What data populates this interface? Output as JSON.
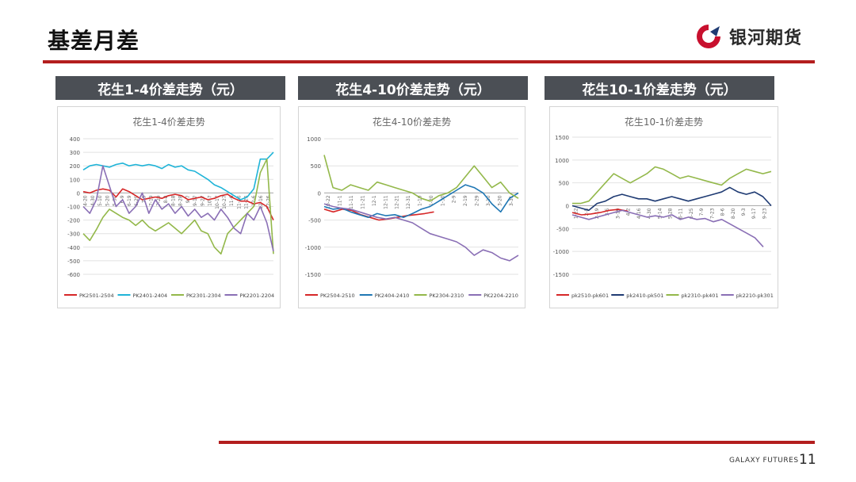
{
  "page": {
    "title": "基差月差",
    "number": "11"
  },
  "brand": {
    "name": "银河期货",
    "footer": "GALAXY FUTURES",
    "accent": "#b31e1e",
    "logo_colors": [
      "#c8102e",
      "#1f3b73"
    ]
  },
  "panels": [
    {
      "header": "花生1-4价差走势（元）"
    },
    {
      "header": "花生4-10价差走势（元）"
    },
    {
      "header": "花生10-1价差走势（元）"
    }
  ],
  "chart_data": [
    {
      "type": "line",
      "title": "花生1-4价差走势",
      "ylim": [
        -600,
        400
      ],
      "yticks": [
        400,
        300,
        200,
        100,
        0,
        -100,
        -200,
        -300,
        -400,
        -500,
        -600
      ],
      "xticks": [
        "4-20",
        "4-30",
        "5-10",
        "5-20",
        "5-30",
        "6-9",
        "6-19",
        "6-29",
        "7-9",
        "7-19",
        "7-29",
        "8-8",
        "8-18",
        "8-28",
        "9-7",
        "9-17",
        "9-27",
        "10-7",
        "10-17",
        "10-27",
        "11-6",
        "11-16",
        "11-26",
        "12-6",
        "12-16",
        "12-26"
      ],
      "legend_position": "bottom",
      "grid": true,
      "series": [
        {
          "name": "PK2501-2504",
          "color": "#d62728",
          "values": [
            10,
            0,
            20,
            30,
            20,
            -30,
            30,
            10,
            -20,
            -50,
            -40,
            -30,
            -40,
            -20,
            -10,
            -20,
            -50,
            -40,
            -30,
            -50,
            -40,
            -20,
            -10,
            -40,
            -60,
            -60,
            -80,
            -70,
            -100,
            -200
          ]
        },
        {
          "name": "PK2401-2404",
          "color": "#1fb4d8",
          "values": [
            170,
            200,
            210,
            200,
            190,
            210,
            220,
            200,
            210,
            200,
            210,
            200,
            180,
            210,
            190,
            200,
            170,
            160,
            130,
            100,
            60,
            40,
            10,
            -20,
            -50,
            -30,
            30,
            250,
            250,
            300
          ]
        },
        {
          "name": "PK2301-2304",
          "color": "#93b84a",
          "values": [
            -300,
            -350,
            -270,
            -180,
            -120,
            -150,
            -180,
            -200,
            -240,
            -200,
            -250,
            -280,
            -250,
            -220,
            -260,
            -300,
            -250,
            -200,
            -280,
            -300,
            -400,
            -450,
            -300,
            -250,
            -200,
            -150,
            -100,
            150,
            250,
            -450
          ]
        },
        {
          "name": "PK2201-2204",
          "color": "#8a6fb5",
          "values": [
            -100,
            -150,
            -50,
            200,
            50,
            -100,
            -50,
            -150,
            -100,
            0,
            -150,
            -50,
            -120,
            -80,
            -150,
            -100,
            -170,
            -120,
            -180,
            -150,
            -200,
            -120,
            -180,
            -260,
            -300,
            -150,
            -200,
            -100,
            -220,
            -430
          ]
        }
      ]
    },
    {
      "type": "line",
      "title": "花生4-10价差走势",
      "ylim": [
        -1500,
        1000
      ],
      "yticks": [
        1000,
        500,
        0,
        -500,
        -1000,
        -1500
      ],
      "xticks": [
        "10-22",
        "11-1",
        "11-11",
        "11-21",
        "12-1",
        "12-11",
        "12-21",
        "12-31",
        "1-10",
        "1-20",
        "1-30",
        "2-9",
        "2-19",
        "2-29",
        "3-10",
        "3-20",
        "3-31"
      ],
      "legend_position": "bottom",
      "grid": true,
      "series": [
        {
          "name": "PK2504-2510",
          "color": "#d62728",
          "values": [
            -300,
            -350,
            -300,
            -320,
            -400,
            -450,
            -500,
            -480,
            -450,
            -420,
            -400,
            -380,
            -350
          ]
        },
        {
          "name": "PK2404-2410",
          "color": "#1f77b4",
          "values": [
            -250,
            -300,
            -280,
            -350,
            -400,
            -450,
            -380,
            -420,
            -400,
            -450,
            -380,
            -300,
            -250,
            -150,
            -50,
            50,
            150,
            100,
            0,
            -200,
            -350,
            -100,
            0
          ]
        },
        {
          "name": "PK2304-2310",
          "color": "#93b84a",
          "values": [
            700,
            100,
            50,
            150,
            100,
            50,
            200,
            150,
            100,
            50,
            0,
            -100,
            -150,
            -50,
            0,
            100,
            300,
            500,
            300,
            100,
            200,
            0,
            -100
          ]
        },
        {
          "name": "PK2204-2210",
          "color": "#8a6fb5",
          "values": [
            -200,
            -250,
            -280,
            -300,
            -350,
            -400,
            -450,
            -480,
            -450,
            -500,
            -550,
            -650,
            -750,
            -800,
            -850,
            -900,
            -1000,
            -1150,
            -1050,
            -1100,
            -1200,
            -1250,
            -1150
          ]
        }
      ]
    },
    {
      "type": "line",
      "title": "花生10-1价差走势",
      "ylim": [
        -1500,
        1500
      ],
      "yticks": [
        1500,
        1000,
        500,
        0,
        -500,
        -1000,
        -1500
      ],
      "xticks": [
        "1-22",
        "2-5",
        "2-19",
        "3-5",
        "3-19",
        "4-2",
        "4-16",
        "4-30",
        "5-14",
        "5-28",
        "6-11",
        "6-25",
        "7-9",
        "7-23",
        "8-6",
        "8-20",
        "9-3",
        "9-17",
        "9-23"
      ],
      "legend_position": "bottom",
      "grid": true,
      "series": [
        {
          "name": "pk2510-pk601",
          "color": "#d62728",
          "values": [
            -150,
            -200,
            -180,
            -150,
            -100,
            -80,
            -120
          ]
        },
        {
          "name": "pk2410-pk501",
          "color": "#1f3b73",
          "values": [
            0,
            -50,
            -100,
            50,
            100,
            200,
            250,
            200,
            150,
            150,
            100,
            150,
            200,
            150,
            100,
            150,
            200,
            250,
            300,
            400,
            300,
            250,
            300,
            200,
            0
          ]
        },
        {
          "name": "pk2310-pk401",
          "color": "#93b84a",
          "values": [
            50,
            50,
            100,
            300,
            500,
            700,
            600,
            500,
            600,
            700,
            850,
            800,
            700,
            600,
            650,
            600,
            550,
            500,
            450,
            600,
            700,
            800,
            750,
            700,
            750
          ]
        },
        {
          "name": "pk2210-pk301",
          "color": "#8a6fb5",
          "values": [
            -200,
            -250,
            -300,
            -250,
            -200,
            -150,
            -100,
            -150,
            -200,
            -250,
            -220,
            -250,
            -200,
            -300,
            -250,
            -300,
            -280,
            -350,
            -300,
            -400,
            -500,
            -600,
            -700,
            -900
          ]
        }
      ]
    }
  ]
}
